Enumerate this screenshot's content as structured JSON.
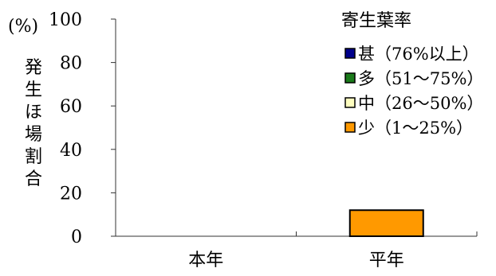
{
  "chart_data": {
    "type": "bar",
    "stacked": true,
    "y_unit": "(%)",
    "ylabel": "発生ほ場割合",
    "ylim": [
      0,
      100
    ],
    "yticks": [
      0,
      20,
      40,
      60,
      80,
      100
    ],
    "categories": [
      "本年",
      "平年"
    ],
    "legend_title": "寄生葉率",
    "legend_position": "top-right",
    "grid": false,
    "series": [
      {
        "name": "甚（76%以上）",
        "color": "#00008b",
        "values": [
          0,
          0
        ]
      },
      {
        "name": "多（51～75%）",
        "color": "#1a7a1a",
        "values": [
          0,
          0
        ]
      },
      {
        "name": "中（26～50%）",
        "color": "#ffffc0",
        "values": [
          0,
          0
        ]
      },
      {
        "name": "少（1～25%）",
        "color": "#ff9900",
        "values": [
          0,
          12
        ]
      }
    ]
  }
}
